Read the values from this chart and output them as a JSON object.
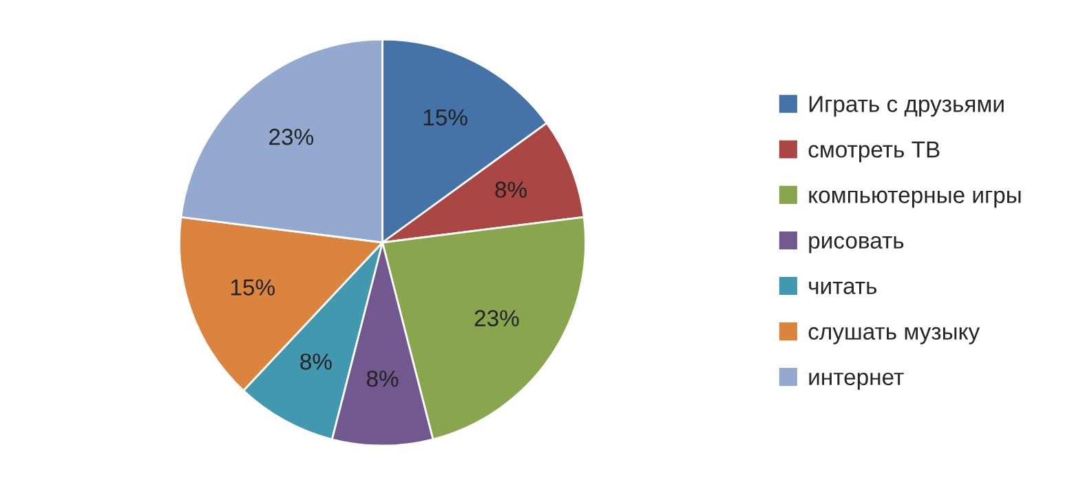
{
  "chart_data": {
    "type": "pie",
    "categories": [
      "Играть с друзьями",
      "смотреть ТВ",
      "компьютерные игры",
      "рисовать",
      "читать",
      "слушать музыку",
      "интернет"
    ],
    "values": [
      15,
      8,
      23,
      8,
      8,
      15,
      23
    ],
    "value_labels": [
      "15%",
      "8%",
      "23%",
      "8%",
      "8%",
      "15%",
      "23%"
    ],
    "colors": [
      "#4572a7",
      "#aa4643",
      "#89a54e",
      "#71588f",
      "#4198af",
      "#db843d",
      "#93a9cf"
    ],
    "legend": "right"
  }
}
